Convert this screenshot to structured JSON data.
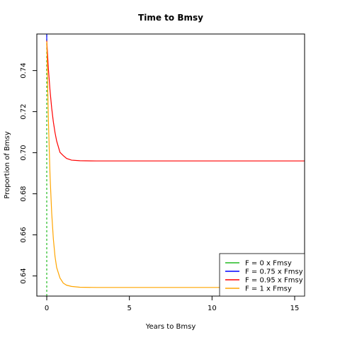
{
  "chart_data": {
    "type": "line",
    "title": "Time to Bmsy",
    "xlabel": "Years to Bmsy",
    "ylabel": "Proportion of Bmsy",
    "xlim": [
      -0.6,
      15.6
    ],
    "ylim": [
      0.6302,
      0.7578
    ],
    "xticks": [
      0,
      5,
      10,
      15
    ],
    "xtick_labels": [
      "0",
      "5",
      "10",
      "15"
    ],
    "yticks": [
      0.64,
      0.66,
      0.68,
      0.7,
      0.72,
      0.74
    ],
    "ytick_labels": [
      "0.64",
      "0.66",
      "0.68",
      "0.70",
      "0.72",
      "0.74"
    ],
    "grid": false,
    "legend_position": "bottom-right",
    "series": [
      {
        "name": "F = 0 x Fmsy",
        "color": "#22bb22",
        "style": "dashed-vertical",
        "x": [
          0,
          0
        ],
        "y": [
          0.6302,
          0.7578
        ]
      },
      {
        "name": "F = 0.75 x Fmsy",
        "color": "#0000ff",
        "style": "vertical",
        "x": [
          0,
          0
        ],
        "y": [
          0.7545,
          0.7578
        ]
      },
      {
        "name": "F = 0.95 x Fmsy",
        "color": "#ff0000",
        "style": "curve",
        "x": [
          0,
          0.1,
          0.2,
          0.3,
          0.4,
          0.5,
          0.6,
          0.8,
          1.0,
          1.2,
          1.5,
          2.0,
          3.0,
          5.0,
          10.0,
          15.6
        ],
        "y": [
          0.7545,
          0.7408,
          0.7301,
          0.7216,
          0.715,
          0.7098,
          0.7057,
          0.7002,
          0.6986,
          0.6972,
          0.6964,
          0.6961,
          0.696,
          0.696,
          0.696,
          0.696
        ]
      },
      {
        "name": "F = 1 x Fmsy",
        "color": "#ffa500",
        "style": "curve",
        "x": [
          0,
          0.1,
          0.2,
          0.3,
          0.4,
          0.5,
          0.6,
          0.8,
          1.0,
          1.2,
          1.5,
          2.0,
          3.0,
          5.0,
          10.0,
          15.6
        ],
        "y": [
          0.754,
          0.7157,
          0.6886,
          0.6705,
          0.658,
          0.6495,
          0.6441,
          0.639,
          0.6365,
          0.6355,
          0.6349,
          0.6345,
          0.6344,
          0.6344,
          0.6344,
          0.6344
        ]
      }
    ]
  }
}
